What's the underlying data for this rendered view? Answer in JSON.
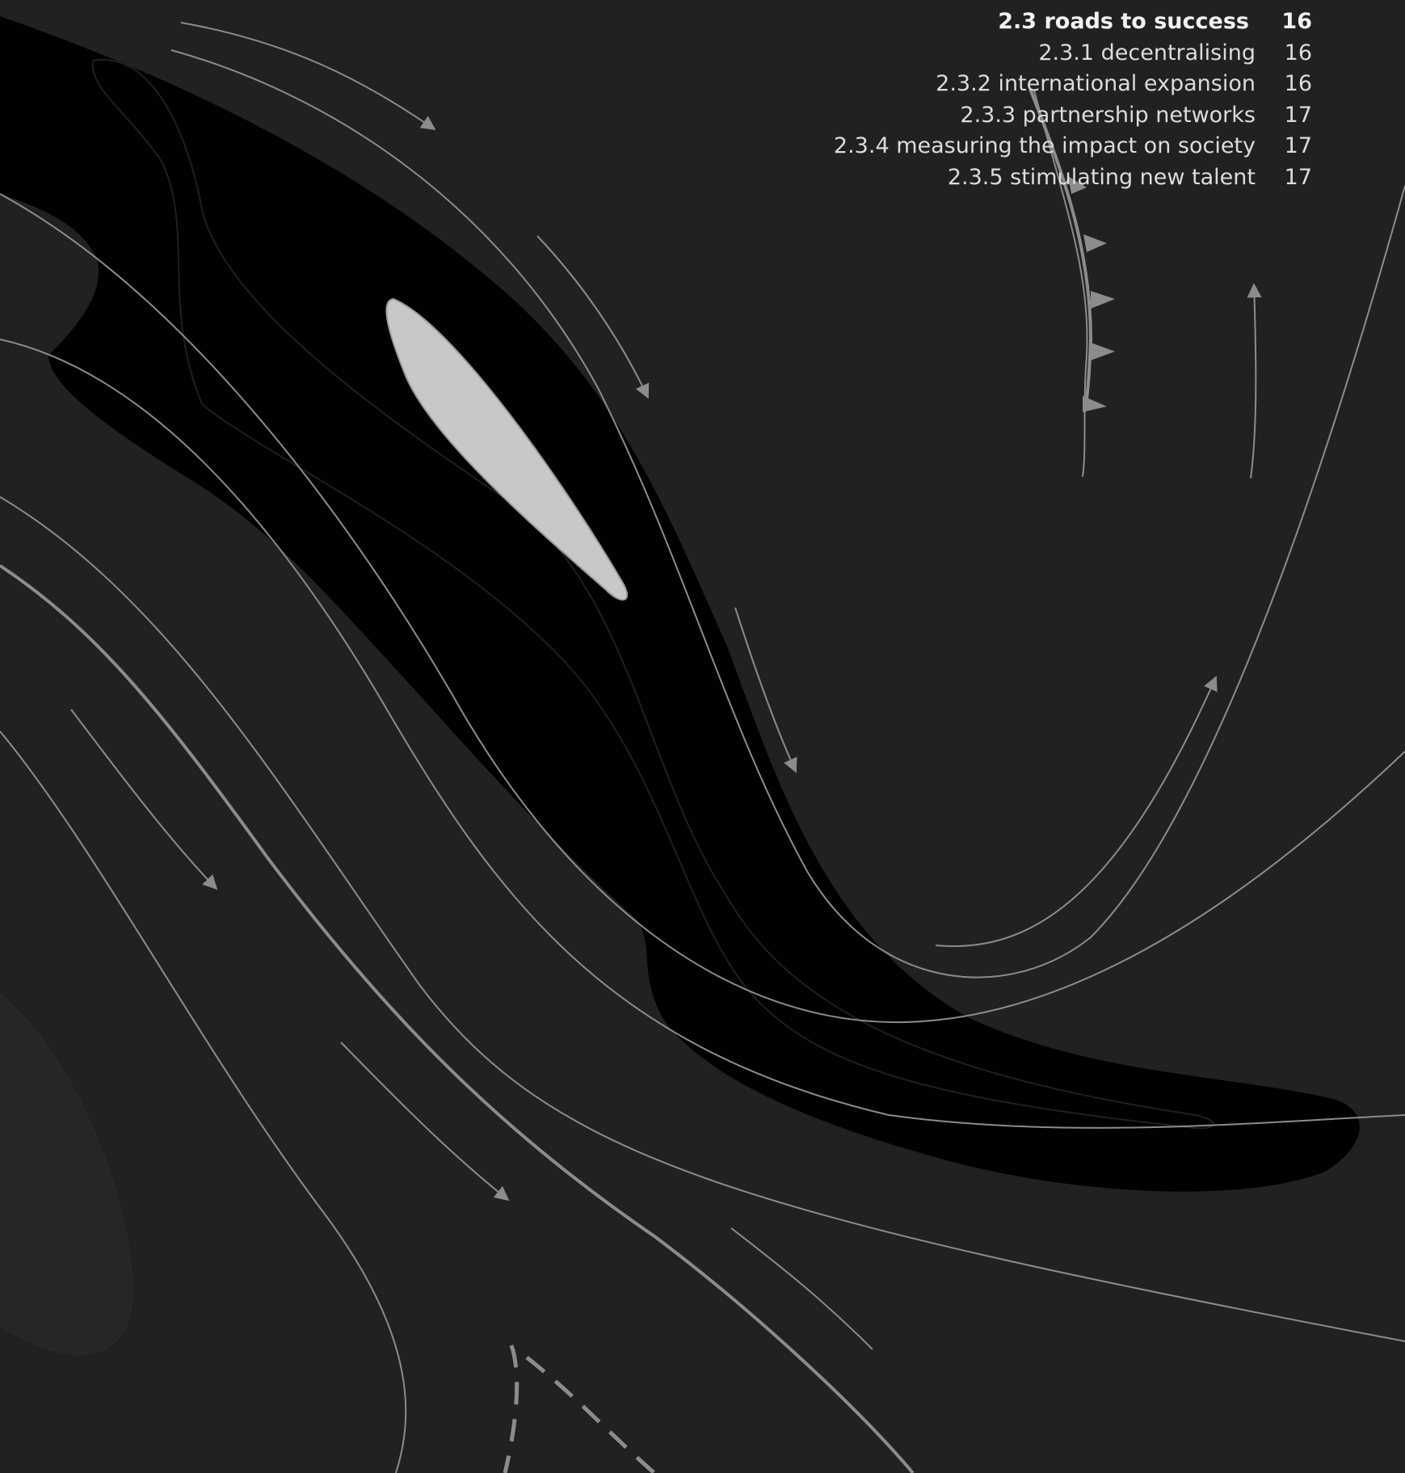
{
  "colors": {
    "background": "#212121",
    "blob_dark": "#000000",
    "blob_light": "#c8c8c8",
    "line": "#8c8c8c",
    "text": "#e6e6e6"
  },
  "toc": {
    "main": {
      "title": "2.3 roads to success",
      "page": "16"
    },
    "items": [
      {
        "title": "2.3.1 decentralising",
        "page": "16"
      },
      {
        "title": "2.3.2 international expansion",
        "page": "16"
      },
      {
        "title": "2.3.3 partnership networks",
        "page": "17"
      },
      {
        "title": "2.3.4 measuring the impact on society",
        "page": "17"
      },
      {
        "title": "2.3.5 stimulating new talent",
        "page": "17"
      }
    ]
  }
}
